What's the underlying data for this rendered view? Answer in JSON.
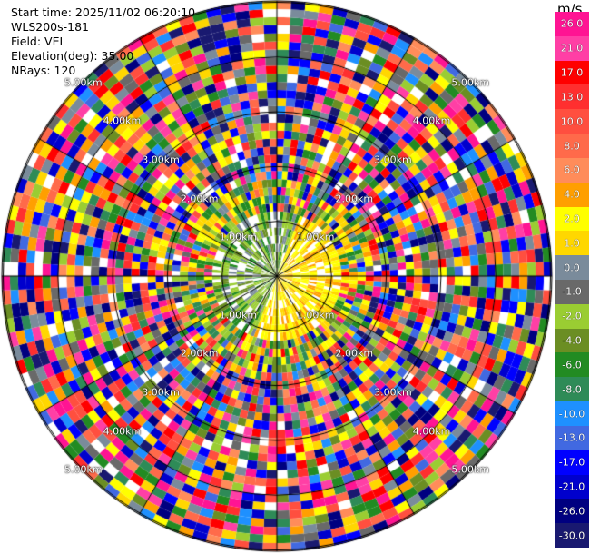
{
  "info": {
    "start_time": "Start time: 2025/11/02 06:20:10",
    "site": "WLS200s-181",
    "field": "Field: VEL",
    "elevation": "Elevation(deg): 35.00",
    "nrays": "NRays: 120"
  },
  "chart_data": {
    "type": "heatmap",
    "projection": "polar-ppi",
    "title": "",
    "field": "VEL",
    "units": "m/s",
    "n_rays": 120,
    "elevation_deg": 35.0,
    "range_rings_km": [
      1.0,
      2.0,
      3.0,
      4.0,
      5.0
    ],
    "range_ring_labels": [
      "1.00km",
      "2.00km",
      "3.00km",
      "4.00km",
      "5.00km"
    ],
    "colorbar": {
      "title": "m/s",
      "ticks": [
        "26.0",
        "21.0",
        "17.0",
        "13.0",
        "10.0",
        "8.0",
        "6.0",
        "4.0",
        "2.0",
        "1.0",
        "0.0",
        "-1.0",
        "-2.0",
        "-4.0",
        "-6.0",
        "-8.0",
        "-10.0",
        "-13.0",
        "-17.0",
        "-21.0",
        "-26.0",
        "-30.0"
      ],
      "colors": [
        "#ff1493",
        "#ff3fa5",
        "#ff0000",
        "#ff2f2f",
        "#ff4f3f",
        "#ff6a4a",
        "#ff8c5a",
        "#ff9f00",
        "#ffff00",
        "#ffd700",
        "#7a8b9b",
        "#696969",
        "#9acd32",
        "#6b8e23",
        "#228b22",
        "#2e8b57",
        "#1e90ff",
        "#4169e1",
        "#0000ff",
        "#0000cd",
        "#000080",
        "#191970"
      ]
    }
  }
}
